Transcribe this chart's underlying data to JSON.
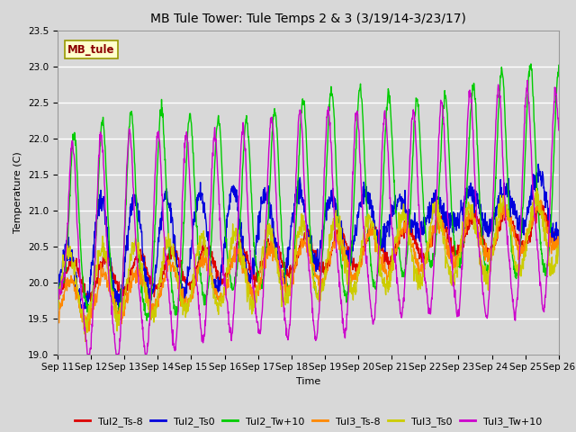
{
  "title": "MB Tule Tower: Tule Temps 2 & 3 (3/19/14-3/23/17)",
  "xlabel": "Time",
  "ylabel": "Temperature (C)",
  "ylim": [
    19.0,
    23.5
  ],
  "yticks": [
    19.0,
    19.5,
    20.0,
    20.5,
    21.0,
    21.5,
    22.0,
    22.5,
    23.0,
    23.5
  ],
  "xtick_labels": [
    "Sep 11",
    "Sep 12",
    "Sep 13",
    "Sep 14",
    "Sep 15",
    "Sep 16",
    "Sep 17",
    "Sep 18",
    "Sep 19",
    "Sep 20",
    "Sep 21",
    "Sep 22",
    "Sep 23",
    "Sep 24",
    "Sep 25",
    "Sep 26"
  ],
  "series": [
    {
      "label": "Tul2_Ts-8",
      "color": "#dd0000"
    },
    {
      "label": "Tul2_Ts0",
      "color": "#0000dd"
    },
    {
      "label": "Tul2_Tw+10",
      "color": "#00cc00"
    },
    {
      "label": "Tul3_Ts-8",
      "color": "#ff8800"
    },
    {
      "label": "Tul3_Ts0",
      "color": "#cccc00"
    },
    {
      "label": "Tul3_Tw+10",
      "color": "#cc00cc"
    }
  ],
  "annotation_text": "MB_tule",
  "fig_bg": "#d8d8d8",
  "plot_bg": "#d8d8d8",
  "linewidth": 1.0,
  "title_fontsize": 10,
  "axis_fontsize": 8,
  "tick_fontsize": 7.5,
  "legend_fontsize": 8
}
